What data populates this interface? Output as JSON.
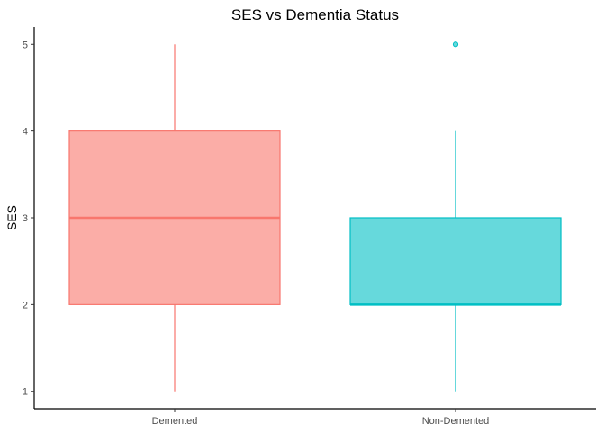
{
  "chart_data": {
    "type": "boxplot",
    "title": "SES vs Dementia Status",
    "xlabel": "",
    "ylabel": "SES",
    "ylim": [
      0.8,
      5.2
    ],
    "yticks": [
      1,
      2,
      3,
      4,
      5
    ],
    "grid": false,
    "legend": "none",
    "categories": [
      "Demented",
      "Non-Demented"
    ],
    "series": [
      {
        "category": "Demented",
        "min": 1,
        "q1": 2,
        "median": 3,
        "q3": 4,
        "max": 5,
        "outliers": [],
        "color": "#F8766D"
      },
      {
        "category": "Non-Demented",
        "min": 1,
        "q1": 2,
        "median": 2,
        "q3": 3,
        "max": 4,
        "outliers": [
          5
        ],
        "color": "#00BFC4"
      }
    ]
  }
}
